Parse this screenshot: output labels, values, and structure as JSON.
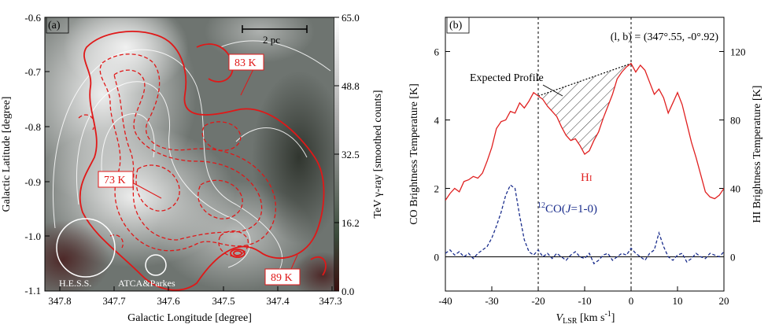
{
  "chart_data": [
    {
      "panel": "(a)",
      "type": "heatmap",
      "xlabel": "Galactic Longitude [degree]",
      "ylabel": "Galactic Latitude [degree]",
      "xlim": [
        347.8,
        347.3
      ],
      "ylim": [
        -1.1,
        -0.6
      ],
      "xticks": [
        "347.8",
        "347.7",
        "347.6",
        "347.5",
        "347.4",
        "347.3"
      ],
      "yticks": [
        "-0.6",
        "-0.7",
        "-0.8",
        "-0.9",
        "-1.0",
        "-1.1"
      ],
      "colorbar_label": "TeV γ-ray [smoothed counts]",
      "colorbar_ticks": [
        "65.0",
        "48.8",
        "32.5",
        "16.2",
        "0.0"
      ],
      "scalebar_label": "2 pc",
      "beams": [
        "H.E.S.S.",
        "ATCA&Parkes"
      ],
      "temperature_labels": [
        "83 K",
        "73 K",
        "89 K"
      ]
    },
    {
      "panel": "(b)",
      "type": "line",
      "title": "(l, b) = (347°.55, -0°.92)",
      "xlabel": "V",
      "xlabel_sub": "LSR",
      "xlabel_unit": " [km s",
      "xlabel_unit_sup": "-1",
      "xlabel_close": "]",
      "ylabel_left": "CO Brightness Temperature [K]",
      "ylabel_right": "HI Brightness Temperature [K]",
      "xlim": [
        -40,
        20
      ],
      "ylim_left": [
        -1,
        7
      ],
      "ylim_right": [
        -20,
        140
      ],
      "xticks": [
        "-40",
        "-30",
        "-20",
        "-10",
        "0",
        "10",
        "20"
      ],
      "yticks_left": [
        "0",
        "2",
        "4",
        "6"
      ],
      "yticks_right": [
        "0",
        "40",
        "80",
        "120"
      ],
      "annotation": "Expected Profile",
      "hi_label": "H",
      "hi_label_sub": "I",
      "co_label_pre": "12",
      "co_label": "CO(",
      "co_label_j": "J",
      "co_label_post": "=1-0)",
      "series": [
        {
          "name": "HI",
          "axis": "right",
          "color": "#e02020",
          "x": [
            -40,
            -39,
            -38,
            -37,
            -36,
            -35,
            -34,
            -33,
            -32,
            -31,
            -30,
            -29,
            -28,
            -27,
            -26,
            -25,
            -24,
            -23,
            -22,
            -21,
            -20,
            -19,
            -18,
            -17,
            -16,
            -15,
            -14,
            -13,
            -12,
            -11,
            -10,
            -9,
            -8,
            -7,
            -6,
            -5,
            -4,
            -3,
            -2,
            -1,
            0,
            1,
            2,
            3,
            4,
            5,
            6,
            7,
            8,
            9,
            10,
            11,
            12,
            13,
            14,
            15,
            16,
            17,
            18,
            19,
            20
          ],
          "values": [
            33,
            37,
            40,
            38,
            44,
            45,
            47,
            46,
            49,
            56,
            64,
            75,
            79,
            80,
            85,
            84,
            90,
            87,
            91,
            96,
            94,
            92,
            88,
            85,
            82,
            76,
            71,
            68,
            69,
            65,
            60,
            62,
            68,
            73,
            81,
            88,
            95,
            104,
            108,
            111,
            113,
            108,
            112,
            109,
            102,
            95,
            98,
            93,
            84,
            90,
            96,
            89,
            78,
            67,
            58,
            48,
            38,
            35,
            34,
            36,
            40
          ]
        },
        {
          "name": "12CO(J=1-0)",
          "axis": "left",
          "color": "#1a2d8c",
          "dashed": true,
          "x": [
            -40,
            -39,
            -38,
            -37,
            -36,
            -35,
            -34,
            -33,
            -32,
            -31,
            -30,
            -29,
            -28,
            -27,
            -26,
            -25,
            -24,
            -23,
            -22,
            -21,
            -20,
            -19,
            -18,
            -17,
            -16,
            -15,
            -14,
            -13,
            -12,
            -11,
            -10,
            -9,
            -8,
            -7,
            -6,
            -5,
            -4,
            -3,
            -2,
            -1,
            0,
            1,
            2,
            3,
            4,
            5,
            6,
            7,
            8,
            9,
            10,
            11,
            12,
            13,
            14,
            15,
            16,
            17,
            18,
            19,
            20
          ],
          "values": [
            0.1,
            0.2,
            0.05,
            0.15,
            0.0,
            0.1,
            -0.05,
            0.1,
            0.2,
            0.3,
            0.55,
            0.9,
            1.3,
            1.8,
            2.1,
            2.0,
            1.2,
            0.5,
            0.15,
            0.05,
            0.2,
            0.0,
            0.1,
            -0.05,
            0.1,
            0.0,
            -0.1,
            0.05,
            0.15,
            0.0,
            -0.05,
            0.1,
            -0.2,
            -0.1,
            0.05,
            0.1,
            -0.1,
            0.0,
            0.1,
            0.05,
            0.25,
            0.1,
            0.0,
            -0.1,
            0.1,
            0.2,
            0.7,
            0.3,
            0.0,
            -0.1,
            0.05,
            0.1,
            -0.15,
            -0.05,
            0.1,
            0.0,
            -0.05,
            0.1,
            0.05,
            0.0,
            0.15
          ]
        }
      ],
      "expected_profile": {
        "x": [
          -20,
          0
        ],
        "values": [
          94,
          113
        ]
      },
      "vlines": [
        -20,
        0
      ]
    }
  ]
}
